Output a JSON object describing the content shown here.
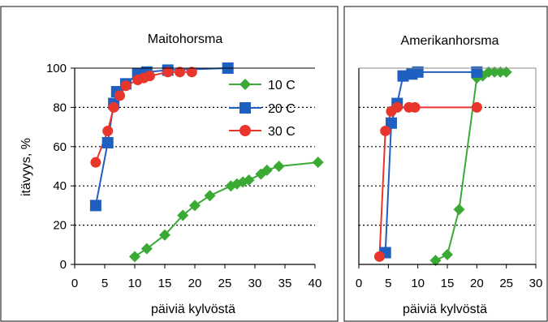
{
  "chart_data": [
    {
      "type": "line",
      "title": "Maitohorsma",
      "xlabel": "päiviä kylvöstä",
      "ylabel": "itävyys, %",
      "xlim": [
        0,
        40
      ],
      "ylim": [
        0,
        100
      ],
      "xticks": [
        "0",
        "5",
        "10",
        "15",
        "20",
        "25",
        "30",
        "35",
        "40"
      ],
      "yticks": [
        "0",
        "20",
        "40",
        "60",
        "80",
        "100"
      ],
      "grid": "horizontal dotted",
      "legend": "top-right",
      "series": [
        {
          "name": "10 C",
          "color": "#3aaa35",
          "marker": "diamond",
          "x": [
            10,
            12,
            15,
            18,
            20,
            22.5,
            26,
            27,
            28,
            29,
            31,
            32,
            34,
            40.5
          ],
          "y": [
            4,
            8,
            15,
            25,
            30,
            35,
            40,
            41,
            42,
            43,
            46,
            48,
            50,
            52
          ]
        },
        {
          "name": "20 C",
          "color": "#1f5fbf",
          "marker": "square",
          "x": [
            3.5,
            5.5,
            6.5,
            7,
            8.5,
            10.5,
            12,
            15.5,
            25.5
          ],
          "y": [
            30,
            62,
            82,
            88,
            92,
            97,
            98,
            99,
            100
          ]
        },
        {
          "name": "30 C",
          "color": "#e8362d",
          "marker": "circle",
          "x": [
            3.5,
            5.5,
            6.5,
            7.5,
            8.5,
            10.5,
            11.5,
            12.5,
            15.5,
            17.5,
            19.5
          ],
          "y": [
            52,
            68,
            80,
            86,
            91,
            94,
            95,
            96,
            98,
            98,
            98
          ]
        }
      ]
    },
    {
      "type": "line",
      "title": "Amerikanhorsma",
      "xlabel": "päiviä kylvöstä",
      "ylabel": "",
      "xlim": [
        0,
        30
      ],
      "ylim": [
        0,
        100
      ],
      "xticks": [
        "0",
        "5",
        "10",
        "15",
        "20",
        "25",
        "30"
      ],
      "yticks": [],
      "grid": "horizontal dotted",
      "legend": "none",
      "series": [
        {
          "name": "10 C",
          "color": "#3aaa35",
          "marker": "diamond",
          "x": [
            13,
            15,
            17,
            20,
            21,
            22,
            23,
            24,
            25
          ],
          "y": [
            2,
            5,
            28,
            95,
            96,
            98,
            98,
            98,
            98
          ]
        },
        {
          "name": "20 C",
          "color": "#1f5fbf",
          "marker": "square",
          "x": [
            4.5,
            5.5,
            6.5,
            7.5,
            9,
            10,
            20
          ],
          "y": [
            6,
            72,
            82,
            96,
            97,
            98,
            98
          ]
        },
        {
          "name": "30 C",
          "color": "#e8362d",
          "marker": "circle",
          "x": [
            3.5,
            4.5,
            5.5,
            6.5,
            8.5,
            9.5,
            20
          ],
          "y": [
            4,
            68,
            78,
            80,
            80,
            80,
            80
          ]
        }
      ]
    }
  ]
}
